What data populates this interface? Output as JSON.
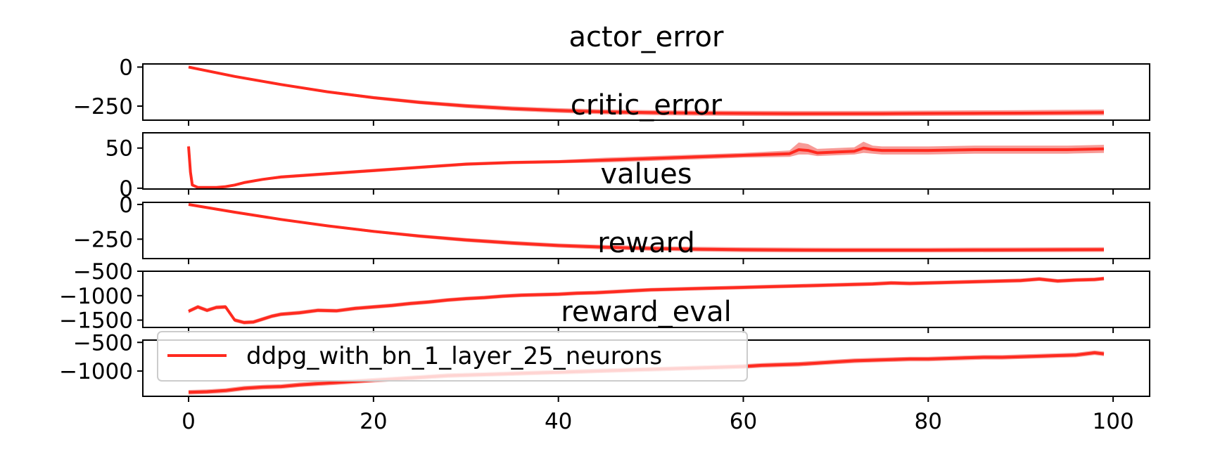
{
  "colors": {
    "line": "#ff2a1f",
    "band": "#f47a74",
    "axis": "#000000",
    "legend_border": "#cccccc"
  },
  "legend": {
    "label": "ddpg_with_bn_1_layer_25_neurons",
    "location": "upper-left of bottom panel"
  },
  "x_axis": {
    "ticks": [
      0,
      20,
      40,
      60,
      80,
      100
    ],
    "range": [
      -4.95,
      103.95
    ]
  },
  "chart_data": [
    {
      "type": "line",
      "title": "actor_error",
      "xlabel": "",
      "ylabel": "",
      "xlim": [
        -4.95,
        103.95
      ],
      "ylim": [
        -340,
        20
      ],
      "yticks": [
        0,
        -250
      ],
      "x": [
        0,
        5,
        10,
        15,
        20,
        25,
        30,
        35,
        40,
        45,
        50,
        55,
        60,
        65,
        70,
        75,
        80,
        85,
        90,
        95,
        99
      ],
      "series": [
        {
          "name": "ddpg_with_bn_1_layer_25_neurons",
          "values": [
            0,
            -60,
            -112,
            -158,
            -196,
            -226,
            -249,
            -266,
            -278,
            -287,
            -292,
            -295,
            -297,
            -298,
            -298,
            -298,
            -297,
            -296,
            -295,
            -293,
            -291
          ],
          "lower": [
            -2,
            -64,
            -118,
            -166,
            -206,
            -238,
            -262,
            -280,
            -293,
            -302,
            -308,
            -311,
            -313,
            -314,
            -314,
            -314,
            -313,
            -312,
            -311,
            -310,
            -309
          ],
          "upper": [
            2,
            -56,
            -106,
            -150,
            -186,
            -214,
            -236,
            -252,
            -263,
            -271,
            -276,
            -279,
            -280,
            -281,
            -281,
            -280,
            -279,
            -277,
            -276,
            -274,
            -272
          ]
        }
      ]
    },
    {
      "type": "line",
      "title": "critic_error",
      "xlabel": "",
      "ylabel": "",
      "xlim": [
        -4.95,
        103.95
      ],
      "ylim": [
        -1,
        69
      ],
      "yticks": [
        50,
        0
      ],
      "x": [
        0,
        0.2,
        0.4,
        1,
        2,
        3,
        4,
        5,
        6,
        8,
        10,
        15,
        20,
        25,
        30,
        35,
        40,
        45,
        50,
        55,
        60,
        65,
        66,
        67,
        68,
        70,
        72,
        73,
        74,
        75,
        80,
        85,
        90,
        95,
        99
      ],
      "series": [
        {
          "name": "ddpg_with_bn_1_layer_25_neurons",
          "values": [
            52,
            20,
            4,
            1,
            1,
            1,
            2,
            4,
            7,
            11,
            14,
            18,
            22,
            26,
            30,
            32,
            33,
            35,
            37,
            39,
            41,
            43,
            48,
            47,
            44,
            45,
            46,
            50,
            48,
            47,
            47,
            48,
            48,
            48,
            49
          ],
          "lower": [
            48,
            17,
            3,
            0,
            0,
            0,
            1,
            3,
            6,
            10,
            12,
            16,
            20,
            24,
            28,
            30,
            31,
            32,
            34,
            36,
            38,
            39,
            42,
            42,
            40,
            41,
            42,
            44,
            43,
            42,
            42,
            43,
            43,
            43,
            44
          ],
          "upper": [
            56,
            23,
            5,
            2,
            2,
            2,
            3,
            5,
            8,
            12,
            16,
            20,
            24,
            28,
            32,
            34,
            35,
            38,
            40,
            42,
            44,
            47,
            57,
            55,
            49,
            50,
            51,
            58,
            53,
            52,
            52,
            53,
            53,
            53,
            54
          ]
        }
      ]
    },
    {
      "type": "line",
      "title": "values",
      "xlabel": "",
      "ylabel": "",
      "xlim": [
        -4.95,
        103.95
      ],
      "ylim": [
        -390,
        15
      ],
      "yticks": [
        0,
        -250
      ],
      "x": [
        0,
        5,
        10,
        15,
        20,
        25,
        30,
        35,
        40,
        45,
        50,
        55,
        60,
        65,
        70,
        75,
        80,
        85,
        90,
        95,
        99
      ],
      "series": [
        {
          "name": "ddpg_with_bn_1_layer_25_neurons",
          "values": [
            0,
            -56,
            -108,
            -154,
            -194,
            -228,
            -256,
            -278,
            -296,
            -308,
            -317,
            -322,
            -326,
            -328,
            -329,
            -329,
            -329,
            -328,
            -327,
            -326,
            -325
          ],
          "lower": [
            -2,
            -60,
            -114,
            -162,
            -204,
            -240,
            -270,
            -293,
            -311,
            -324,
            -333,
            -339,
            -343,
            -345,
            -346,
            -346,
            -346,
            -345,
            -344,
            -343,
            -342
          ],
          "upper": [
            2,
            -52,
            -102,
            -146,
            -184,
            -216,
            -242,
            -263,
            -281,
            -292,
            -301,
            -305,
            -309,
            -311,
            -312,
            -312,
            -312,
            -311,
            -310,
            -309,
            -308
          ]
        }
      ]
    },
    {
      "type": "line",
      "title": "reward",
      "xlabel": "",
      "ylabel": "",
      "xlim": [
        -4.95,
        103.95
      ],
      "ylim": [
        -1650,
        -500
      ],
      "yticks": [
        -500,
        -1000,
        -1500
      ],
      "x": [
        0,
        1,
        2,
        3,
        4,
        5,
        6,
        7,
        8,
        9,
        10,
        12,
        14,
        16,
        18,
        20,
        22,
        24,
        26,
        28,
        30,
        32,
        34,
        36,
        38,
        40,
        42,
        44,
        46,
        48,
        50,
        52,
        54,
        56,
        58,
        60,
        62,
        64,
        66,
        68,
        70,
        72,
        74,
        76,
        78,
        80,
        82,
        84,
        86,
        88,
        90,
        92,
        94,
        96,
        98,
        99
      ],
      "series": [
        {
          "name": "ddpg_with_bn_1_layer_25_neurons",
          "values": [
            -1320,
            -1230,
            -1300,
            -1240,
            -1230,
            -1500,
            -1550,
            -1540,
            -1480,
            -1420,
            -1380,
            -1350,
            -1300,
            -1310,
            -1260,
            -1230,
            -1200,
            -1160,
            -1130,
            -1090,
            -1060,
            -1040,
            -1010,
            -990,
            -980,
            -970,
            -950,
            -940,
            -920,
            -900,
            -880,
            -870,
            -860,
            -850,
            -840,
            -830,
            -820,
            -810,
            -800,
            -790,
            -780,
            -770,
            -760,
            -740,
            -750,
            -740,
            -730,
            -720,
            -710,
            -700,
            -690,
            -660,
            -700,
            -680,
            -670,
            -650
          ],
          "lower": [
            -1360,
            -1270,
            -1340,
            -1280,
            -1270,
            -1540,
            -1590,
            -1580,
            -1520,
            -1460,
            -1420,
            -1390,
            -1340,
            -1350,
            -1300,
            -1270,
            -1240,
            -1200,
            -1170,
            -1130,
            -1100,
            -1080,
            -1050,
            -1030,
            -1020,
            -1010,
            -990,
            -980,
            -960,
            -940,
            -920,
            -910,
            -900,
            -890,
            -880,
            -870,
            -860,
            -850,
            -840,
            -830,
            -820,
            -810,
            -800,
            -780,
            -790,
            -780,
            -770,
            -760,
            -750,
            -740,
            -730,
            -700,
            -740,
            -720,
            -710,
            -690
          ],
          "upper": [
            -1280,
            -1190,
            -1260,
            -1200,
            -1190,
            -1460,
            -1510,
            -1500,
            -1440,
            -1380,
            -1340,
            -1310,
            -1260,
            -1270,
            -1220,
            -1190,
            -1160,
            -1120,
            -1090,
            -1050,
            -1020,
            -1000,
            -970,
            -950,
            -940,
            -930,
            -910,
            -900,
            -880,
            -860,
            -840,
            -830,
            -820,
            -810,
            -800,
            -790,
            -780,
            -770,
            -760,
            -750,
            -740,
            -730,
            -720,
            -700,
            -710,
            -700,
            -690,
            -680,
            -670,
            -660,
            -650,
            -620,
            -660,
            -640,
            -630,
            -610
          ]
        }
      ]
    },
    {
      "type": "line",
      "title": "reward_eval",
      "xlabel": "",
      "ylabel": "",
      "xlim": [
        -4.95,
        103.95
      ],
      "ylim": [
        -1440,
        -460
      ],
      "yticks": [
        -500,
        -1000
      ],
      "x": [
        0,
        2,
        4,
        6,
        8,
        10,
        12,
        14,
        16,
        18,
        20,
        22,
        24,
        26,
        28,
        30,
        32,
        34,
        36,
        38,
        40,
        42,
        44,
        46,
        48,
        50,
        52,
        54,
        56,
        58,
        60,
        62,
        64,
        66,
        68,
        70,
        72,
        74,
        76,
        78,
        80,
        82,
        84,
        86,
        88,
        90,
        92,
        94,
        96,
        98,
        99
      ],
      "series": [
        {
          "name": "ddpg_with_bn_1_layer_25_neurons",
          "values": [
            -1370,
            -1360,
            -1340,
            -1300,
            -1280,
            -1270,
            -1240,
            -1220,
            -1200,
            -1180,
            -1160,
            -1140,
            -1120,
            -1100,
            -1080,
            -1070,
            -1060,
            -1050,
            -1040,
            -1030,
            -1020,
            -1010,
            -1000,
            -990,
            -980,
            -970,
            -960,
            -950,
            -940,
            -930,
            -920,
            -900,
            -890,
            -880,
            -860,
            -840,
            -820,
            -810,
            -800,
            -790,
            -790,
            -780,
            -770,
            -760,
            -760,
            -750,
            -740,
            -730,
            -720,
            -680,
            -700
          ],
          "lower": [
            -1410,
            -1400,
            -1380,
            -1340,
            -1320,
            -1310,
            -1280,
            -1260,
            -1240,
            -1220,
            -1200,
            -1180,
            -1160,
            -1140,
            -1120,
            -1110,
            -1100,
            -1090,
            -1080,
            -1070,
            -1060,
            -1050,
            -1040,
            -1030,
            -1020,
            -1010,
            -1000,
            -990,
            -980,
            -970,
            -960,
            -940,
            -930,
            -920,
            -900,
            -880,
            -860,
            -850,
            -840,
            -830,
            -830,
            -820,
            -810,
            -800,
            -800,
            -790,
            -780,
            -770,
            -760,
            -720,
            -740
          ],
          "upper": [
            -1330,
            -1320,
            -1300,
            -1260,
            -1240,
            -1230,
            -1200,
            -1180,
            -1160,
            -1140,
            -1120,
            -1100,
            -1080,
            -1060,
            -1040,
            -1030,
            -1020,
            -1010,
            -1000,
            -990,
            -980,
            -970,
            -960,
            -950,
            -940,
            -930,
            -920,
            -910,
            -900,
            -890,
            -880,
            -860,
            -850,
            -840,
            -820,
            -800,
            -780,
            -770,
            -760,
            -750,
            -750,
            -740,
            -730,
            -720,
            -720,
            -710,
            -700,
            -690,
            -680,
            -640,
            -660
          ]
        }
      ]
    }
  ]
}
